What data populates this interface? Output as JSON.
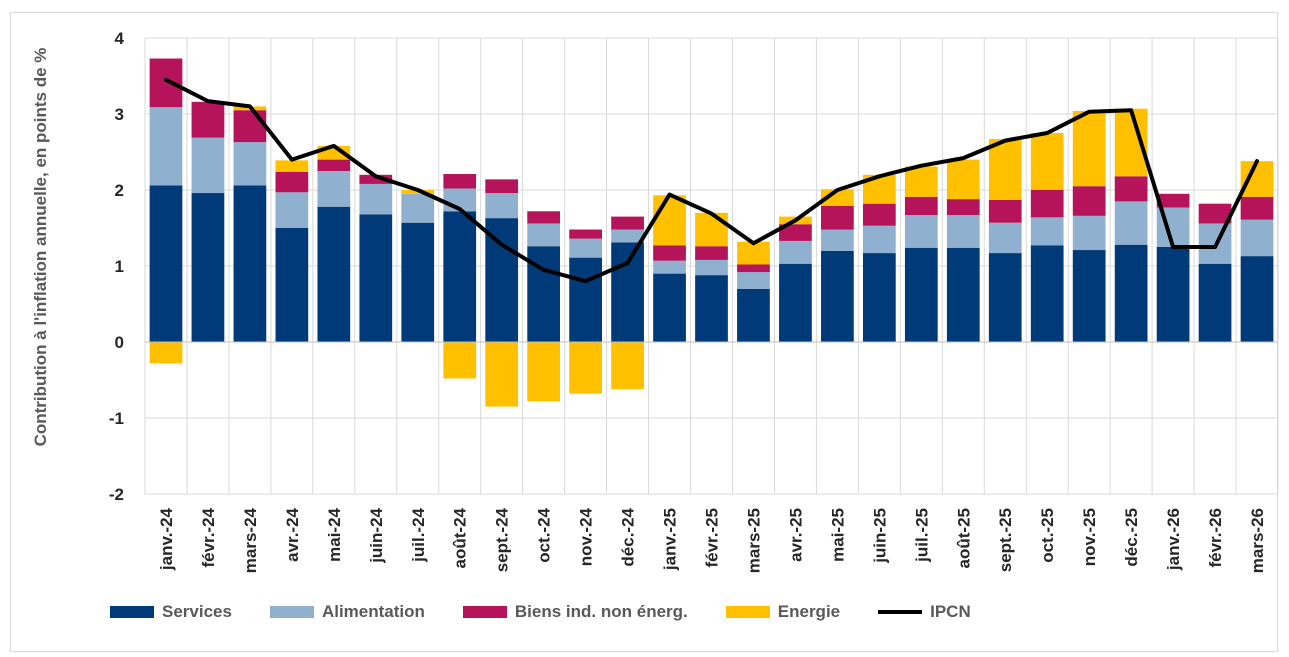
{
  "chart_data": {
    "type": "bar",
    "stacked": true,
    "ylabel": "Contribution à l'inflation annuelle, en points de %",
    "ylim": [
      -2,
      4
    ],
    "yticks": [
      4,
      3,
      2,
      1,
      0,
      -1,
      -2
    ],
    "grid": true,
    "legend_position": "bottom",
    "categories": [
      "janv.-24",
      "févr.-24",
      "mars-24",
      "avr.-24",
      "mai-24",
      "juin-24",
      "juil.-24",
      "août-24",
      "sept.-24",
      "oct.-24",
      "nov.-24",
      "déc.-24",
      "janv.-25",
      "févr.-25",
      "mars-25",
      "avr.-25",
      "mai-25",
      "juin-25",
      "juil.-25",
      "août-25",
      "sept.-25",
      "oct.-25",
      "nov.-25",
      "déc.-25",
      "janv.-26",
      "févr.-26",
      "mars-26"
    ],
    "series": [
      {
        "name": "Services",
        "kind": "bar",
        "color": "#003a78",
        "values": [
          2.06,
          1.96,
          2.06,
          1.5,
          1.78,
          1.68,
          1.57,
          1.72,
          1.63,
          1.26,
          1.11,
          1.31,
          0.9,
          0.88,
          0.7,
          1.03,
          1.2,
          1.17,
          1.24,
          1.24,
          1.17,
          1.27,
          1.21,
          1.28,
          1.25,
          1.03,
          1.13
        ]
      },
      {
        "name": "Alimentation",
        "kind": "bar",
        "color": "#8fb0cf",
        "values": [
          1.03,
          0.73,
          0.57,
          0.47,
          0.47,
          0.4,
          0.38,
          0.3,
          0.33,
          0.3,
          0.25,
          0.17,
          0.17,
          0.2,
          0.22,
          0.3,
          0.28,
          0.36,
          0.43,
          0.43,
          0.4,
          0.37,
          0.45,
          0.57,
          0.52,
          0.53,
          0.48
        ]
      },
      {
        "name": "Biens ind. non énerg.",
        "kind": "bar",
        "color": "#b5135a",
        "values": [
          0.64,
          0.47,
          0.42,
          0.27,
          0.15,
          0.12,
          0.0,
          0.19,
          0.18,
          0.16,
          0.12,
          0.17,
          0.2,
          0.18,
          0.1,
          0.22,
          0.31,
          0.29,
          0.24,
          0.21,
          0.3,
          0.36,
          0.39,
          0.33,
          0.18,
          0.26,
          0.3
        ]
      },
      {
        "name": "Energie",
        "kind": "bar",
        "color": "#ffc000",
        "values": [
          -0.28,
          0.0,
          0.05,
          0.15,
          0.18,
          0.0,
          0.05,
          -0.48,
          -0.85,
          -0.78,
          -0.68,
          -0.62,
          0.66,
          0.44,
          0.3,
          0.1,
          0.22,
          0.38,
          0.4,
          0.52,
          0.8,
          0.75,
          0.99,
          0.89,
          0.0,
          0.0,
          0.47
        ]
      },
      {
        "name": "IPCN",
        "kind": "line",
        "color": "#000000",
        "values": [
          3.45,
          3.17,
          3.1,
          2.4,
          2.58,
          2.18,
          2.0,
          1.75,
          1.28,
          0.95,
          0.8,
          1.04,
          1.94,
          1.69,
          1.3,
          1.6,
          2.0,
          2.18,
          2.32,
          2.42,
          2.65,
          2.75,
          3.03,
          3.05,
          1.25,
          1.25,
          2.38
        ]
      }
    ]
  }
}
